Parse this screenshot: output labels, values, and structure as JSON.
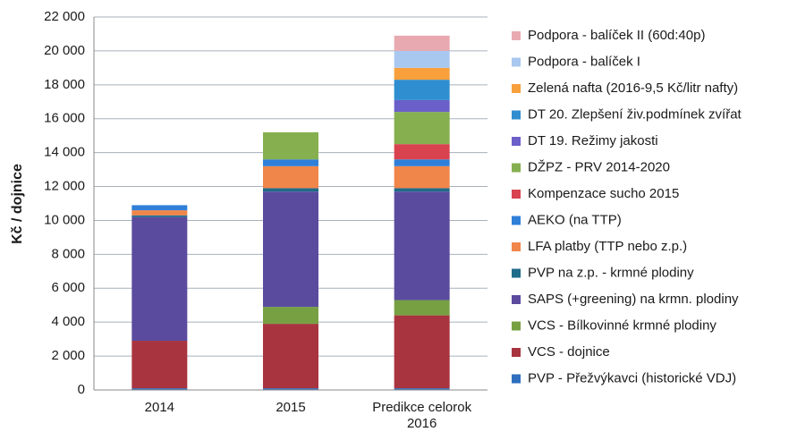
{
  "chart_data": {
    "type": "stacked_bar",
    "y_label": "Kč / dojnice",
    "categories": [
      "2014",
      "2015",
      "Predikce celorok 2016"
    ],
    "ylim": [
      0,
      22000
    ],
    "yticks": [
      0,
      {
        "value": 2000,
        "label": "2 000"
      },
      {
        "value": 4000,
        "label": "4 000"
      },
      {
        "value": 6000,
        "label": "6 000"
      },
      {
        "value": 8000,
        "label": "8 000"
      },
      {
        "value": 10000,
        "label": "10 000"
      },
      {
        "value": 12000,
        "label": "12 000"
      },
      {
        "value": 14000,
        "label": "14 000"
      },
      {
        "value": 16000,
        "label": "16 000"
      },
      {
        "value": 18000,
        "label": "18 000"
      },
      {
        "value": 20000,
        "label": "20 000"
      },
      {
        "value": 22000,
        "label": "22 000"
      }
    ],
    "grid": true,
    "legend": "right",
    "series": [
      {
        "name": "PVP - Přežvýkavci (historické VDJ)",
        "color": "#2e6fbf",
        "values": [
          100,
          100,
          100
        ]
      },
      {
        "name": "VCS - dojnice",
        "color": "#a8343f",
        "values": [
          2800,
          3800,
          4300
        ]
      },
      {
        "name": "VCS - Bílkovinné krmné plodiny",
        "color": "#77a043",
        "values": [
          0,
          1000,
          900
        ]
      },
      {
        "name": "SAPS (+greening) na krmn. plodiny",
        "color": "#5b4b9e",
        "values": [
          7300,
          6800,
          6400
        ]
      },
      {
        "name": "PVP na z.p. - krmné plodiny",
        "color": "#1f6b8a",
        "values": [
          100,
          200,
          200
        ]
      },
      {
        "name": "LFA platby (TTP nebo z.p.)",
        "color": "#f0864a",
        "values": [
          300,
          1300,
          1300
        ]
      },
      {
        "name": "AEKO (na TTP)",
        "color": "#2f7fd9",
        "values": [
          300,
          400,
          400
        ]
      },
      {
        "name": "Kompenzace sucho 2015",
        "color": "#d9424f",
        "values": [
          0,
          0,
          900
        ]
      },
      {
        "name": "DŽPZ - PRV 2014-2020",
        "color": "#86b04f",
        "values": [
          0,
          1600,
          1900
        ]
      },
      {
        "name": "DT 19. Režimy jakosti",
        "color": "#6b5fc9",
        "values": [
          0,
          0,
          700
        ]
      },
      {
        "name": "DT 20. Zlepšení živ.podmínek zvířat",
        "color": "#2f8ecf",
        "values": [
          0,
          0,
          1200
        ]
      },
      {
        "name": "Zelená nafta (2016-9,5 Kč/litr nafty)",
        "color": "#f7a03c",
        "values": [
          0,
          0,
          700
        ]
      },
      {
        "name": "Podpora - balíček I",
        "color": "#a9c8f0",
        "values": [
          0,
          0,
          1000
        ]
      },
      {
        "name": "Podpora - balíček II (60d:40p)",
        "color": "#e8aab0",
        "values": [
          0,
          0,
          900
        ]
      }
    ]
  }
}
